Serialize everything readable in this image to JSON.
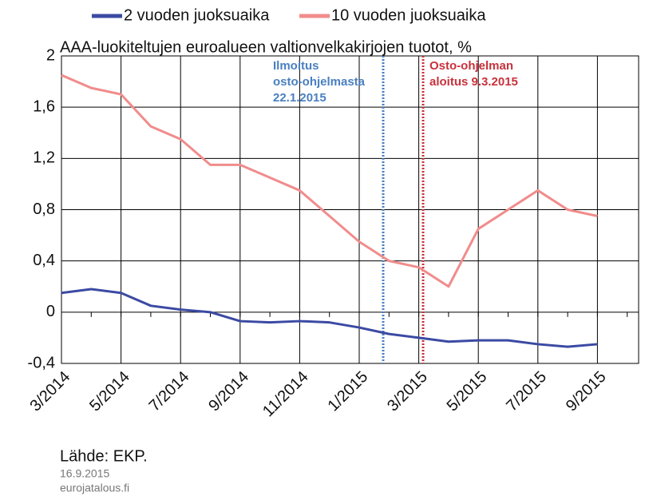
{
  "chart_data": {
    "type": "line",
    "title": "AAA-luokiteltujen euroalueen valtionvelkakirjojen tuotot, %",
    "categories": [
      "3/2014",
      null,
      "5/2014",
      null,
      "7/2014",
      null,
      "9/2014",
      null,
      "11/2014",
      null,
      "1/2015",
      null,
      "3/2015",
      null,
      "5/2015",
      null,
      "7/2015",
      null,
      "9/2015"
    ],
    "series": [
      {
        "name": "2 vuoden juoksuaika",
        "color": "#3b4aa3",
        "values": [
          0.15,
          0.18,
          0.15,
          0.05,
          0.02,
          0.0,
          -0.07,
          -0.08,
          -0.07,
          -0.08,
          -0.12,
          -0.17,
          -0.2,
          -0.23,
          -0.22,
          -0.22,
          -0.25,
          -0.27,
          -0.25
        ]
      },
      {
        "name": "10 vuoden juoksuaika",
        "color": "#f18c8c",
        "values": [
          1.85,
          1.75,
          1.7,
          1.45,
          1.35,
          1.15,
          1.15,
          1.05,
          0.95,
          0.75,
          0.55,
          0.4,
          0.35,
          0.2,
          0.65,
          0.8,
          0.95,
          0.8,
          0.75
        ]
      }
    ],
    "ylim": [
      -0.4,
      2
    ],
    "yticks": [
      {
        "value": -0.4,
        "label": "-0,4"
      },
      0,
      {
        "value": 0.4,
        "label": "0,4"
      },
      {
        "value": 0.8,
        "label": "0,8"
      },
      {
        "value": 1.2,
        "label": "1,2"
      },
      {
        "value": 1.6,
        "label": "1,6"
      },
      2
    ],
    "grid": true,
    "annotations": [
      {
        "lines": [
          "Ilmoitus",
          "osto-ohjelmasta",
          "22.1.2015"
        ],
        "color": "#4a7fc1"
      },
      {
        "lines": [
          "Osto-ohjelman",
          "aloitus 9.3.2015"
        ],
        "color": "#c8323c"
      }
    ],
    "source": "Lähde: EKP.",
    "date": "16.9.2015",
    "site": "eurojatalous.fi"
  }
}
